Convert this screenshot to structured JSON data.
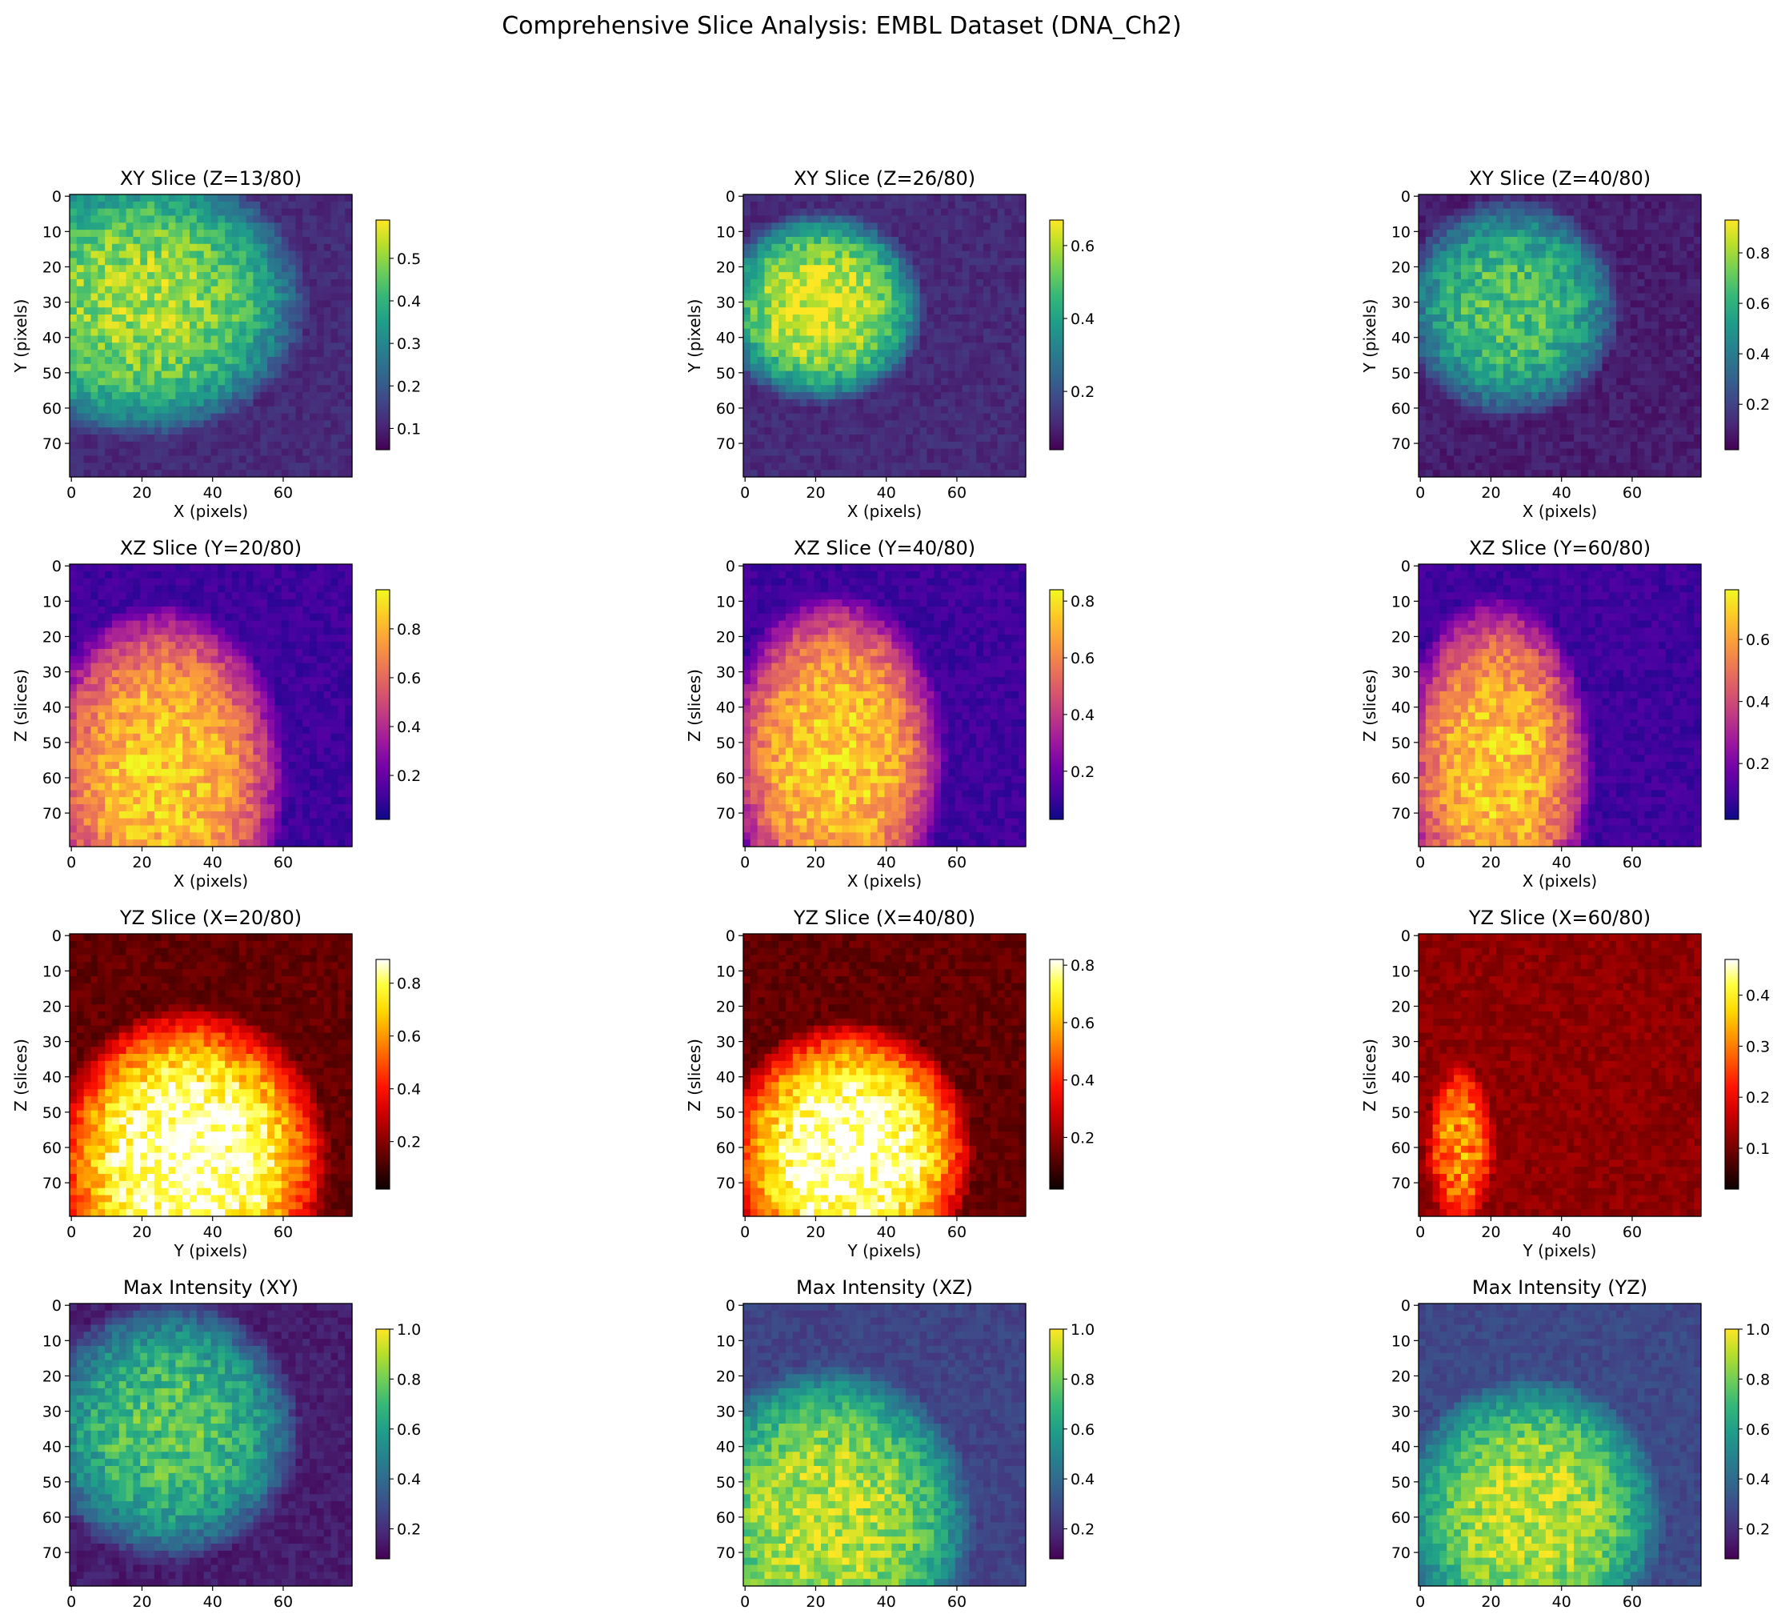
{
  "figure": {
    "title": "Comprehensive Slice Analysis: EMBL Dataset (DNA_Ch2)"
  },
  "colormaps": {
    "viridis": [
      "#440154",
      "#482878",
      "#3e4a89",
      "#31688e",
      "#26828e",
      "#1f9e89",
      "#35b779",
      "#6ece58",
      "#b5de2b",
      "#fde725"
    ],
    "plasma": [
      "#0d0887",
      "#46039f",
      "#7201a8",
      "#9c179e",
      "#bd3786",
      "#d8576b",
      "#ed7953",
      "#fb9f3a",
      "#fdca26",
      "#f0f921"
    ],
    "hot": [
      "#0b0000",
      "#4d0000",
      "#8f0000",
      "#d10000",
      "#ff1300",
      "#ff5500",
      "#ff9800",
      "#ffda00",
      "#ffff3e",
      "#ffffff"
    ]
  },
  "chart_data": [
    {
      "type": "heatmap",
      "title": "XY Slice (Z=13/80)",
      "xlabel": "X (pixels)",
      "ylabel": "Y (pixels)",
      "colormap": "viridis",
      "xlim": [
        0,
        80
      ],
      "ylim": [
        80,
        0
      ],
      "xticks": [
        "0",
        "20",
        "40",
        "60"
      ],
      "yticks": [
        "0",
        "10",
        "20",
        "30",
        "40",
        "50",
        "60",
        "70"
      ],
      "vmin": 0.05,
      "vmax": 0.59,
      "cbar_ticks": [
        "0.1",
        "0.2",
        "0.3",
        "0.4",
        "0.5"
      ],
      "cbar_values": [
        0.1,
        0.2,
        0.3,
        0.4,
        0.5
      ],
      "blob": {
        "cx": 20,
        "cy": 30,
        "rx": 48,
        "ry": 40,
        "peak": 0.85
      },
      "base": 0.12
    },
    {
      "type": "heatmap",
      "title": "XY Slice (Z=26/80)",
      "xlabel": "X (pixels)",
      "ylabel": "Y (pixels)",
      "colormap": "viridis",
      "xlim": [
        0,
        80
      ],
      "ylim": [
        80,
        0
      ],
      "xticks": [
        "0",
        "20",
        "40",
        "60"
      ],
      "yticks": [
        "0",
        "10",
        "20",
        "30",
        "40",
        "50",
        "60",
        "70"
      ],
      "vmin": 0.04,
      "vmax": 0.67,
      "cbar_ticks": [
        "0.2",
        "0.4",
        "0.6"
      ],
      "cbar_values": [
        0.2,
        0.4,
        0.6
      ],
      "blob": {
        "cx": 22,
        "cy": 32,
        "rx": 30,
        "ry": 28,
        "peak": 0.95
      },
      "base": 0.12
    },
    {
      "type": "heatmap",
      "title": "XY Slice (Z=40/80)",
      "xlabel": "X (pixels)",
      "ylabel": "Y (pixels)",
      "colormap": "viridis",
      "xlim": [
        0,
        80
      ],
      "ylim": [
        80,
        0
      ],
      "xticks": [
        "0",
        "20",
        "40",
        "60"
      ],
      "yticks": [
        "0",
        "10",
        "20",
        "30",
        "40",
        "50",
        "60",
        "70"
      ],
      "vmin": 0.02,
      "vmax": 0.93,
      "cbar_ticks": [
        "0.2",
        "0.4",
        "0.6",
        "0.8"
      ],
      "cbar_values": [
        0.2,
        0.4,
        0.6,
        0.8
      ],
      "blob": {
        "cx": 26,
        "cy": 32,
        "rx": 32,
        "ry": 32,
        "peak": 0.72
      },
      "base": 0.08
    },
    {
      "type": "heatmap",
      "title": "XZ Slice (Y=20/80)",
      "xlabel": "X (pixels)",
      "ylabel": "Z (slices)",
      "colormap": "plasma",
      "xlim": [
        0,
        80
      ],
      "ylim": [
        80,
        0
      ],
      "xticks": [
        "0",
        "20",
        "40",
        "60"
      ],
      "yticks": [
        "0",
        "10",
        "20",
        "30",
        "40",
        "50",
        "60",
        "70"
      ],
      "vmin": 0.02,
      "vmax": 0.96,
      "cbar_ticks": [
        "0.2",
        "0.4",
        "0.6",
        "0.8"
      ],
      "cbar_values": [
        0.2,
        0.4,
        0.6,
        0.8
      ],
      "blob": {
        "cx": 26,
        "cy": 60,
        "rx": 36,
        "ry": 50,
        "peak": 0.88
      },
      "base": 0.1
    },
    {
      "type": "heatmap",
      "title": "XZ Slice (Y=40/80)",
      "xlabel": "X (pixels)",
      "ylabel": "Z (slices)",
      "colormap": "plasma",
      "xlim": [
        0,
        80
      ],
      "ylim": [
        80,
        0
      ],
      "xticks": [
        "0",
        "20",
        "40",
        "60"
      ],
      "yticks": [
        "0",
        "10",
        "20",
        "30",
        "40",
        "50",
        "60",
        "70"
      ],
      "vmin": 0.03,
      "vmax": 0.84,
      "cbar_ticks": [
        "0.2",
        "0.4",
        "0.6",
        "0.8"
      ],
      "cbar_values": [
        0.2,
        0.4,
        0.6,
        0.8
      ],
      "blob": {
        "cx": 26,
        "cy": 55,
        "rx": 32,
        "ry": 48,
        "peak": 0.9
      },
      "base": 0.1
    },
    {
      "type": "heatmap",
      "title": "XZ Slice (Y=60/80)",
      "xlabel": "X (pixels)",
      "ylabel": "Z (slices)",
      "colormap": "plasma",
      "xlim": [
        0,
        80
      ],
      "ylim": [
        80,
        0
      ],
      "xticks": [
        "0",
        "20",
        "40",
        "60"
      ],
      "yticks": [
        "0",
        "10",
        "20",
        "30",
        "40",
        "50",
        "60",
        "70"
      ],
      "vmin": 0.02,
      "vmax": 0.76,
      "cbar_ticks": [
        "0.2",
        "0.4",
        "0.6"
      ],
      "cbar_values": [
        0.2,
        0.4,
        0.6
      ],
      "blob": {
        "cx": 22,
        "cy": 58,
        "rx": 28,
        "ry": 50,
        "peak": 0.88
      },
      "base": 0.1
    },
    {
      "type": "heatmap",
      "title": "YZ Slice (X=20/80)",
      "xlabel": "Y (pixels)",
      "ylabel": "Z (slices)",
      "colormap": "hot",
      "xlim": [
        0,
        80
      ],
      "ylim": [
        80,
        0
      ],
      "xticks": [
        "0",
        "20",
        "40",
        "60"
      ],
      "yticks": [
        "0",
        "10",
        "20",
        "30",
        "40",
        "50",
        "60",
        "70"
      ],
      "vmin": 0.02,
      "vmax": 0.89,
      "cbar_ticks": [
        "0.2",
        "0.4",
        "0.6",
        "0.8"
      ],
      "cbar_values": [
        0.2,
        0.4,
        0.6,
        0.8
      ],
      "blob": {
        "cx": 34,
        "cy": 64,
        "rx": 40,
        "ry": 44,
        "peak": 1.0
      },
      "base": 0.15
    },
    {
      "type": "heatmap",
      "title": "YZ Slice (X=40/80)",
      "xlabel": "Y (pixels)",
      "ylabel": "Z (slices)",
      "colormap": "hot",
      "xlim": [
        0,
        80
      ],
      "ylim": [
        80,
        0
      ],
      "xticks": [
        "0",
        "20",
        "40",
        "60"
      ],
      "yticks": [
        "0",
        "10",
        "20",
        "30",
        "40",
        "50",
        "60",
        "70"
      ],
      "vmin": 0.02,
      "vmax": 0.82,
      "cbar_ticks": [
        "0.2",
        "0.4",
        "0.6",
        "0.8"
      ],
      "cbar_values": [
        0.2,
        0.4,
        0.6,
        0.8
      ],
      "blob": {
        "cx": 30,
        "cy": 62,
        "rx": 36,
        "ry": 38,
        "peak": 1.0
      },
      "base": 0.15
    },
    {
      "type": "heatmap",
      "title": "YZ Slice (X=60/80)",
      "xlabel": "Y (pixels)",
      "ylabel": "Z (slices)",
      "colormap": "hot",
      "xlim": [
        0,
        80
      ],
      "ylim": [
        80,
        0
      ],
      "xticks": [
        "0",
        "20",
        "40",
        "60"
      ],
      "yticks": [
        "0",
        "10",
        "20",
        "30",
        "40",
        "50",
        "60",
        "70"
      ],
      "vmin": 0.02,
      "vmax": 0.47,
      "cbar_ticks": [
        "0.1",
        "0.2",
        "0.3",
        "0.4"
      ],
      "cbar_values": [
        0.1,
        0.2,
        0.3,
        0.4
      ],
      "blob": {
        "cx": 12,
        "cy": 60,
        "rx": 10,
        "ry": 24,
        "peak": 0.65
      },
      "base": 0.22
    },
    {
      "type": "heatmap",
      "title": "Max Intensity (XY)",
      "xlabel": "",
      "ylabel": "",
      "colormap": "viridis",
      "xlim": [
        0,
        80
      ],
      "ylim": [
        80,
        0
      ],
      "xticks": [
        "0",
        "20",
        "40",
        "60"
      ],
      "yticks": [
        "0",
        "10",
        "20",
        "30",
        "40",
        "50",
        "60",
        "70"
      ],
      "vmin": 0.08,
      "vmax": 1.0,
      "cbar_ticks": [
        "0.2",
        "0.4",
        "0.6",
        "0.8",
        "1.0"
      ],
      "cbar_values": [
        0.2,
        0.4,
        0.6,
        0.8,
        1.0
      ],
      "blob": {
        "cx": 28,
        "cy": 36,
        "rx": 38,
        "ry": 38,
        "peak": 0.72
      },
      "base": 0.08
    },
    {
      "type": "heatmap",
      "title": "Max Intensity (XZ)",
      "xlabel": "",
      "ylabel": "",
      "colormap": "viridis",
      "xlim": [
        0,
        80
      ],
      "ylim": [
        80,
        0
      ],
      "xticks": [
        "0",
        "20",
        "40",
        "60"
      ],
      "yticks": [
        "0",
        "10",
        "20",
        "30",
        "40",
        "50",
        "60",
        "70"
      ],
      "vmin": 0.08,
      "vmax": 1.0,
      "cbar_ticks": [
        "0.2",
        "0.4",
        "0.6",
        "0.8",
        "1.0"
      ],
      "cbar_values": [
        0.2,
        0.4,
        0.6,
        0.8,
        1.0
      ],
      "blob": {
        "cx": 24,
        "cy": 62,
        "rx": 42,
        "ry": 46,
        "peak": 0.9
      },
      "base": 0.2
    },
    {
      "type": "heatmap",
      "title": "Max Intensity (YZ)",
      "xlabel": "",
      "ylabel": "",
      "colormap": "viridis",
      "xlim": [
        0,
        80
      ],
      "ylim": [
        80,
        0
      ],
      "xticks": [
        "0",
        "20",
        "40",
        "60"
      ],
      "yticks": [
        "0",
        "10",
        "20",
        "30",
        "40",
        "50",
        "60",
        "70"
      ],
      "vmin": 0.08,
      "vmax": 1.0,
      "cbar_ticks": [
        "0.2",
        "0.4",
        "0.6",
        "0.8",
        "1.0"
      ],
      "cbar_values": [
        0.2,
        0.4,
        0.6,
        0.8,
        1.0
      ],
      "blob": {
        "cx": 32,
        "cy": 60,
        "rx": 38,
        "ry": 40,
        "peak": 0.9
      },
      "base": 0.22
    }
  ]
}
